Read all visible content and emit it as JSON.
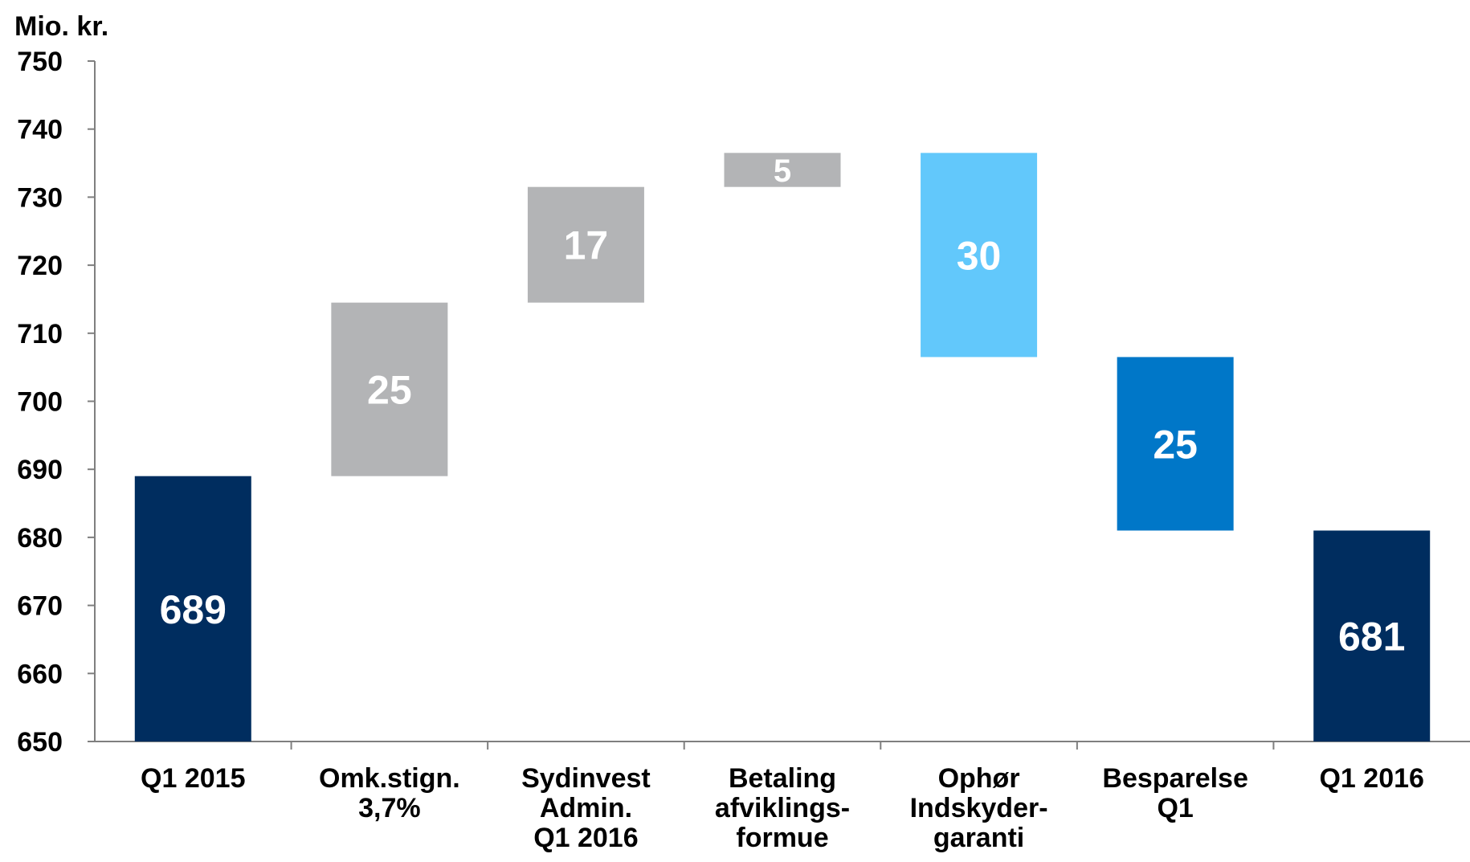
{
  "chart_data": {
    "type": "bar",
    "subtype": "waterfall",
    "title": "",
    "ylabel": "Mio. kr.",
    "xlabel": "",
    "ylim": [
      650,
      750
    ],
    "yticks": [
      650,
      660,
      670,
      680,
      690,
      700,
      710,
      720,
      730,
      740,
      750
    ],
    "grid": false,
    "legend": "none",
    "categories": [
      [
        "Q1 2015"
      ],
      [
        "Omk.stign.",
        "3,7%"
      ],
      [
        "Sydinvest",
        "Admin.",
        "Q1 2016"
      ],
      [
        "Betaling",
        "afviklings-",
        "formue"
      ],
      [
        "Ophør",
        "Indskyder-",
        "garanti"
      ],
      [
        "Besparelse",
        "Q1"
      ],
      [
        "Q1 2016"
      ]
    ],
    "bars": [
      {
        "base": 650,
        "top": 689,
        "label": "689",
        "color": "#002d5f"
      },
      {
        "base": 689,
        "top": 714.5,
        "label": "25",
        "color": "#b3b4b6"
      },
      {
        "base": 714.5,
        "top": 731.5,
        "label": "17",
        "color": "#b3b4b6"
      },
      {
        "base": 731.5,
        "top": 736.5,
        "label": "5",
        "color": "#b3b4b6"
      },
      {
        "base": 706.5,
        "top": 736.5,
        "label": "30",
        "color": "#62c8fb"
      },
      {
        "base": 681,
        "top": 706.5,
        "label": "25",
        "color": "#0077c8"
      },
      {
        "base": 650,
        "top": 681,
        "label": "681",
        "color": "#002d5f"
      }
    ]
  }
}
